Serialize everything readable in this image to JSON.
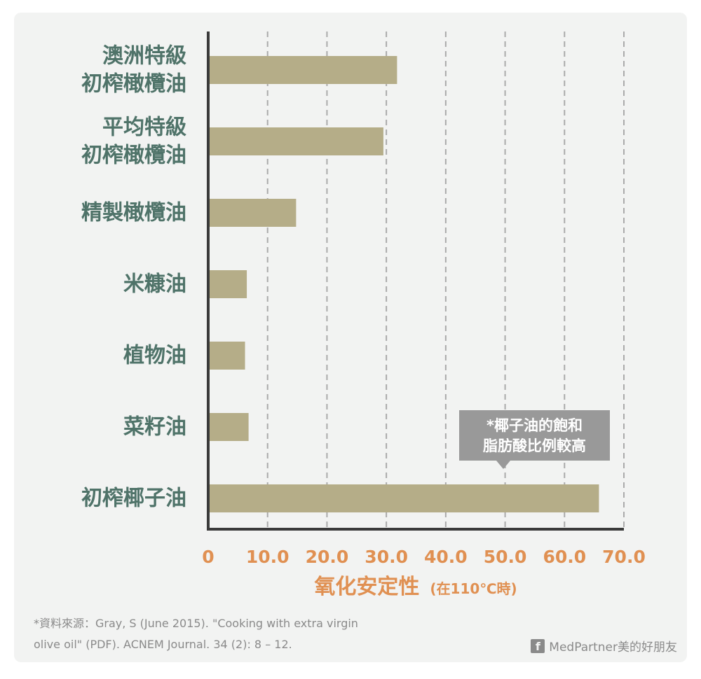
{
  "chart_data": {
    "type": "bar",
    "orientation": "horizontal",
    "categories": [
      [
        "澳洲特級",
        "初榨橄欖油"
      ],
      [
        "平均特級",
        "初榨橄欖油"
      ],
      [
        "精製橄欖油"
      ],
      [
        "米糠油"
      ],
      [
        "植物油"
      ],
      [
        "菜籽油"
      ],
      [
        "初榨椰子油"
      ]
    ],
    "values": [
      31.8,
      29.5,
      14.8,
      6.5,
      6.2,
      6.8,
      65.8
    ],
    "xlim": [
      0,
      70
    ],
    "xticks": [
      0,
      10,
      20,
      30,
      40,
      50,
      60,
      70
    ],
    "xtick_labels": [
      "0",
      "10.0",
      "20.0",
      "30.0",
      "40.0",
      "50.0",
      "60.0",
      "70.0"
    ],
    "xlabel": "氧化安定性",
    "xlabel_unit": "(在110℃時)",
    "grid": "vertical-dashed",
    "annotation": {
      "lines": [
        "*椰子油的飽和",
        "脂肪酸比例較高"
      ],
      "target_category_index": 6
    },
    "colors": {
      "bar": "#b5ad88",
      "axis": "#3a3a3a",
      "grid": "#aaaaaa",
      "category": "#4f7369",
      "tick": "#e09052",
      "annotation_bg": "#999999",
      "background": "#f2f3f2"
    }
  },
  "source": {
    "line1": "*資料來源：Gray, S (June 2015). \"Cooking with extra virgin",
    "line2": "olive oil\" (PDF). ACNEM Journal. 34 (2): 8 – 12."
  },
  "brand": {
    "icon": "facebook-icon",
    "icon_glyph": "f",
    "text": "MedPartner美的好朋友"
  }
}
